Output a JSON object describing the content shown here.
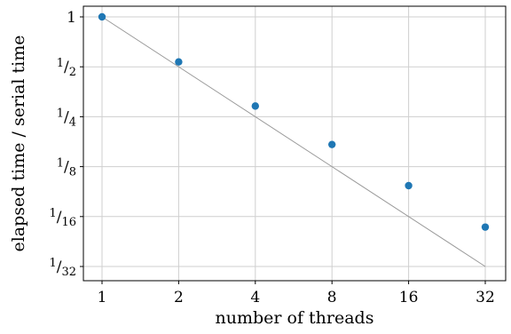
{
  "chart_data": {
    "type": "scatter",
    "title": "",
    "xlabel": "number of threads",
    "ylabel": "elapsed time / serial time",
    "x_scale": "log2",
    "y_scale": "log2",
    "xlim": [
      1,
      32
    ],
    "ylim": [
      0.03125,
      1
    ],
    "grid": true,
    "x_ticks": [
      {
        "value": 1,
        "label": "1"
      },
      {
        "value": 2,
        "label": "2"
      },
      {
        "value": 4,
        "label": "4"
      },
      {
        "value": 8,
        "label": "8"
      },
      {
        "value": 16,
        "label": "16"
      },
      {
        "value": 32,
        "label": "32"
      }
    ],
    "y_ticks": [
      {
        "value": 1,
        "label": "1"
      },
      {
        "value": 0.5,
        "label": "1/2",
        "num": "1",
        "den": "2"
      },
      {
        "value": 0.25,
        "label": "1/4",
        "num": "1",
        "den": "4"
      },
      {
        "value": 0.125,
        "label": "1/8",
        "num": "1",
        "den": "8"
      },
      {
        "value": 0.0625,
        "label": "1/16",
        "num": "1",
        "den": "16"
      },
      {
        "value": 0.03125,
        "label": "1/32",
        "num": "1",
        "den": "32"
      }
    ],
    "series": [
      {
        "x": [
          1,
          2,
          4,
          8,
          16,
          32
        ],
        "y": [
          1.0,
          0.535,
          0.29,
          0.17,
          0.096,
          0.054
        ],
        "color": "#1f77b4",
        "marker": "circle"
      }
    ],
    "reference_line": {
      "x": [
        1,
        32
      ],
      "y": [
        1,
        0.03125
      ],
      "color": "#9a9a9a"
    }
  }
}
